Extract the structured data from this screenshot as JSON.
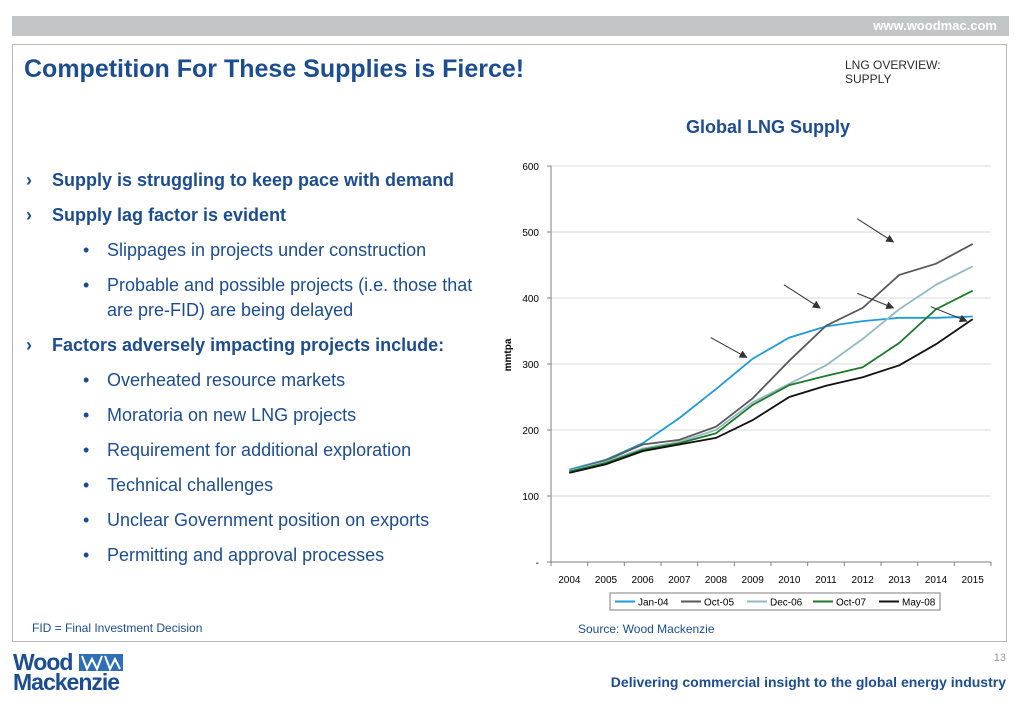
{
  "header": {
    "url": "www.woodmac.com"
  },
  "slide": {
    "title": "Competition For These Supplies is Fierce!",
    "section": "LNG OVERVIEW: SUPPLY",
    "bullets": [
      {
        "level": 1,
        "text": "Supply is struggling to keep pace with demand"
      },
      {
        "level": 1,
        "text": "Supply lag factor is evident"
      },
      {
        "level": 2,
        "text": "Slippages in projects under construction"
      },
      {
        "level": 2,
        "text": "Probable and possible projects (i.e. those that are pre-FID) are being delayed"
      },
      {
        "level": 1,
        "text": "Factors adversely impacting projects include:"
      },
      {
        "level": 2,
        "text": "Overheated resource markets"
      },
      {
        "level": 2,
        "text": "Moratoria on new LNG projects"
      },
      {
        "level": 2,
        "text": "Requirement for additional exploration"
      },
      {
        "level": 2,
        "text": "Technical challenges"
      },
      {
        "level": 2,
        "text": "Unclear Government position on exports"
      },
      {
        "level": 2,
        "text": "Permitting and approval processes"
      }
    ],
    "footnote": "FID = Final Investment Decision",
    "source": "Source: Wood Mackenzie",
    "page_number": "13",
    "tagline": "Delivering commercial insight to the global energy industry",
    "logo": {
      "line1": "Wood",
      "line2": "Mackenzie"
    }
  },
  "chart_data": {
    "type": "line",
    "title": "Global LNG Supply",
    "ylabel": "mmtpa",
    "xlabel": "",
    "ylim": [
      0,
      600
    ],
    "yticks": [
      0,
      100,
      200,
      300,
      400,
      500,
      600
    ],
    "ytick_labels": [
      "-",
      "100",
      "200",
      "300",
      "400",
      "500",
      "600"
    ],
    "categories": [
      "2004",
      "2005",
      "2006",
      "2007",
      "2008",
      "2009",
      "2010",
      "2011",
      "2012",
      "2013",
      "2014",
      "2015"
    ],
    "legend_position": "bottom",
    "grid": true,
    "series": [
      {
        "name": "Jan-04",
        "color": "#1f9bd7",
        "values": [
          140,
          155,
          180,
          218,
          262,
          308,
          340,
          357,
          365,
          370,
          370,
          372
        ]
      },
      {
        "name": "Oct-05",
        "color": "#595959",
        "values": [
          138,
          154,
          178,
          185,
          205,
          248,
          305,
          358,
          385,
          435,
          452,
          482
        ]
      },
      {
        "name": "Dec-06",
        "color": "#93b8c4",
        "values": [
          138,
          152,
          172,
          182,
          200,
          242,
          270,
          298,
          338,
          383,
          420,
          448
        ]
      },
      {
        "name": "Oct-07",
        "color": "#1e7a2b",
        "values": [
          137,
          150,
          170,
          180,
          195,
          238,
          268,
          282,
          295,
          332,
          383,
          411
        ]
      },
      {
        "name": "May-08",
        "color": "#111111",
        "values": [
          135,
          148,
          168,
          178,
          188,
          215,
          250,
          267,
          280,
          298,
          330,
          368
        ]
      }
    ],
    "annotation_arrows": [
      {
        "x": "2009",
        "y_from": 340,
        "y_to": 310
      },
      {
        "x": "2011",
        "y_from": 420,
        "y_to": 385
      },
      {
        "x": "2013",
        "y_from": 520,
        "y_to": 485
      },
      {
        "x": "2013",
        "y_from": 407,
        "y_to": 385
      },
      {
        "x": "2015",
        "y_from": 387,
        "y_to": 365
      }
    ]
  }
}
